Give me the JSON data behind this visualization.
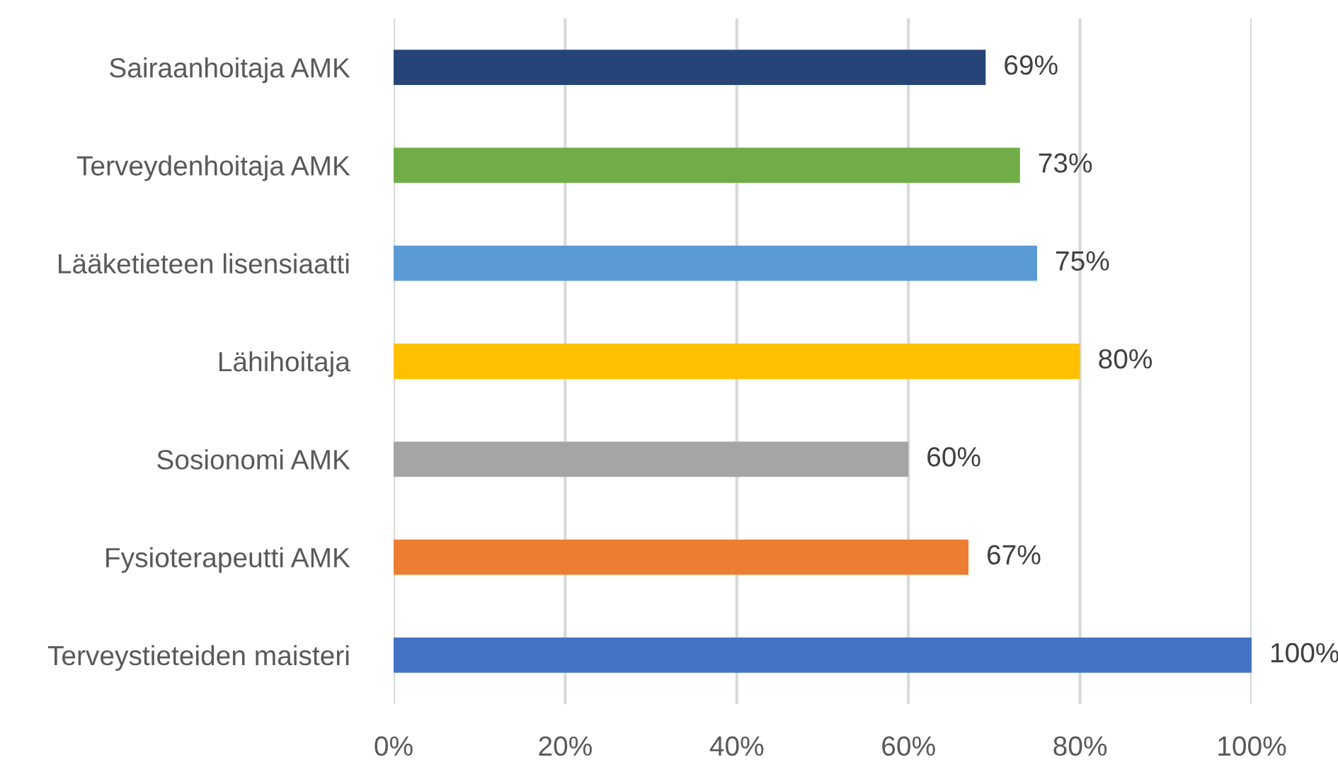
{
  "chart_data": {
    "type": "bar",
    "orientation": "horizontal",
    "categories": [
      "Sairaanhoitaja AMK",
      "Terveydenhoitaja AMK",
      "Lääketieteen lisensiaatti",
      "Lähihoitaja",
      "Sosionomi AMK",
      "Fysioterapeutti AMK",
      "Terveystieteiden maisteri"
    ],
    "values": [
      69,
      73,
      75,
      80,
      60,
      67,
      100
    ],
    "value_labels": [
      "69%",
      "73%",
      "75%",
      "80%",
      "60%",
      "67%",
      "100%"
    ],
    "colors": [
      "#264478",
      "#70ad47",
      "#5b9bd5",
      "#ffc000",
      "#a5a5a5",
      "#ed7d31",
      "#4472c4"
    ],
    "xlim": [
      0,
      100
    ],
    "xticks": [
      {
        "value": 0,
        "label": "0%"
      },
      {
        "value": 20,
        "label": "20%"
      },
      {
        "value": 40,
        "label": "40%"
      },
      {
        "value": 60,
        "label": "60%"
      },
      {
        "value": 80,
        "label": "80%"
      },
      {
        "value": 100,
        "label": "100%"
      }
    ],
    "grid": "x"
  }
}
